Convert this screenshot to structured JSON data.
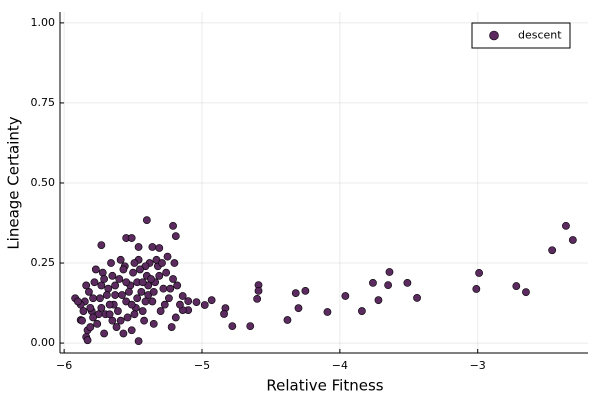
{
  "chart_data": {
    "type": "scatter",
    "xlabel": "Relative Fitness",
    "ylabel": "Lineage Certainty",
    "xlim": [
      -6.03,
      -2.2
    ],
    "ylim": [
      -0.031,
      1.034
    ],
    "xticks": [
      {
        "value": -6,
        "label": "−6"
      },
      {
        "value": -5,
        "label": "−5"
      },
      {
        "value": -4,
        "label": "−4"
      },
      {
        "value": -3,
        "label": "−3"
      }
    ],
    "yticks": [
      {
        "value": 0,
        "label": "0.00"
      },
      {
        "value": 0.25,
        "label": "0.25"
      },
      {
        "value": 0.5,
        "label": "0.50"
      },
      {
        "value": 0.75,
        "label": "0.75"
      },
      {
        "value": 1,
        "label": "1.00"
      }
    ],
    "grid": true,
    "legend": "top-right",
    "x": [
      -2.46,
      -2.36,
      -2.31,
      -2.72,
      -2.65,
      -2.99,
      -3.01,
      -3.44,
      -3.51,
      -3.64,
      -3.65,
      -3.72,
      -3.76,
      -3.84,
      -3.96,
      -4.09,
      -4.25,
      -4.32,
      -4.3,
      -4.38,
      -4.59,
      -4.59,
      -4.6,
      -4.65,
      -4.78,
      -4.83,
      -4.84,
      -4.93,
      -4.98,
      -5.04,
      -5.1,
      -5.1,
      -5.14,
      -5.14,
      -5.21,
      -5.19,
      -5.4,
      -5.73,
      -5.55,
      -5.51,
      -5.46,
      -5.36,
      -5.31,
      -5.84,
      -5.83,
      -5.46,
      -5.92,
      -5.88,
      -5.85,
      -5.82,
      -5.8,
      -5.78,
      -5.76,
      -5.74,
      -5.72,
      -5.7,
      -5.68,
      -5.66,
      -5.64,
      -5.62,
      -5.6,
      -5.58,
      -5.56,
      -5.54,
      -5.52,
      -5.5,
      -5.48,
      -5.46,
      -5.44,
      -5.42,
      -5.4,
      -5.38,
      -5.36,
      -5.34,
      -5.32,
      -5.3,
      -5.28,
      -5.26,
      -5.24,
      -5.22,
      -5.2,
      -5.18,
      -5.16,
      -5.25,
      -5.33,
      -5.41,
      -5.49,
      -5.57,
      -5.65,
      -5.73,
      -5.81,
      -5.87,
      -5.83,
      -5.79,
      -5.75,
      -5.71,
      -5.67,
      -5.63,
      -5.59,
      -5.55,
      -5.51,
      -5.47,
      -5.43,
      -5.39,
      -5.35,
      -5.31,
      -5.27,
      -5.45,
      -5.53,
      -5.61,
      -5.69,
      -5.77,
      -5.84,
      -5.86,
      -5.88,
      -5.9,
      -5.81,
      -5.73,
      -5.65,
      -5.57,
      -5.49,
      -5.41,
      -5.37,
      -5.29,
      -5.21,
      -5.19,
      -5.23,
      -5.39,
      -5.47,
      -5.55,
      -5.63,
      -5.71,
      -5.79,
      -5.59,
      -5.51,
      -5.43,
      -5.35,
      -5.67
    ],
    "series": [
      {
        "name": "descent",
        "color": "#5b2a5f",
        "values": [
          0.29,
          0.366,
          0.322,
          0.178,
          0.159,
          0.219,
          0.169,
          0.141,
          0.188,
          0.222,
          0.181,
          0.134,
          0.188,
          0.1,
          0.147,
          0.097,
          0.163,
          0.156,
          0.109,
          0.072,
          0.181,
          0.163,
          0.138,
          0.053,
          0.053,
          0.109,
          0.091,
          0.134,
          0.119,
          0.128,
          0.131,
          0.103,
          0.147,
          0.103,
          0.366,
          0.334,
          0.384,
          0.306,
          0.328,
          0.328,
          0.3,
          0.3,
          0.297,
          0.019,
          0.009,
          0.006,
          0.14,
          0.072,
          0.13,
          0.16,
          0.1,
          0.19,
          0.06,
          0.14,
          0.22,
          0.09,
          0.17,
          0.25,
          0.12,
          0.05,
          0.2,
          0.15,
          0.24,
          0.08,
          0.18,
          0.22,
          0.11,
          0.26,
          0.16,
          0.07,
          0.21,
          0.25,
          0.13,
          0.19,
          0.24,
          0.1,
          0.17,
          0.22,
          0.14,
          0.05,
          0.25,
          0.18,
          0.12,
          0.27,
          0.26,
          0.24,
          0.25,
          0.23,
          0.21,
          0.18,
          0.11,
          0.07,
          0.04,
          0.14,
          0.09,
          0.03,
          0.12,
          0.18,
          0.07,
          0.13,
          0.04,
          0.19,
          0.1,
          0.15,
          0.06,
          0.21,
          0.12,
          0.23,
          0.16,
          0.1,
          0.15,
          0.23,
          0.18,
          0.1,
          0.12,
          0.13,
          0.05,
          0.11,
          0.07,
          0.03,
          0.09,
          0.13,
          0.2,
          0.25,
          0.2,
          0.08,
          0.17,
          0.18,
          0.14,
          0.19,
          0.15,
          0.2,
          0.08,
          0.26,
          0.12,
          0.19,
          0.16,
          0.09
        ]
      }
    ]
  }
}
